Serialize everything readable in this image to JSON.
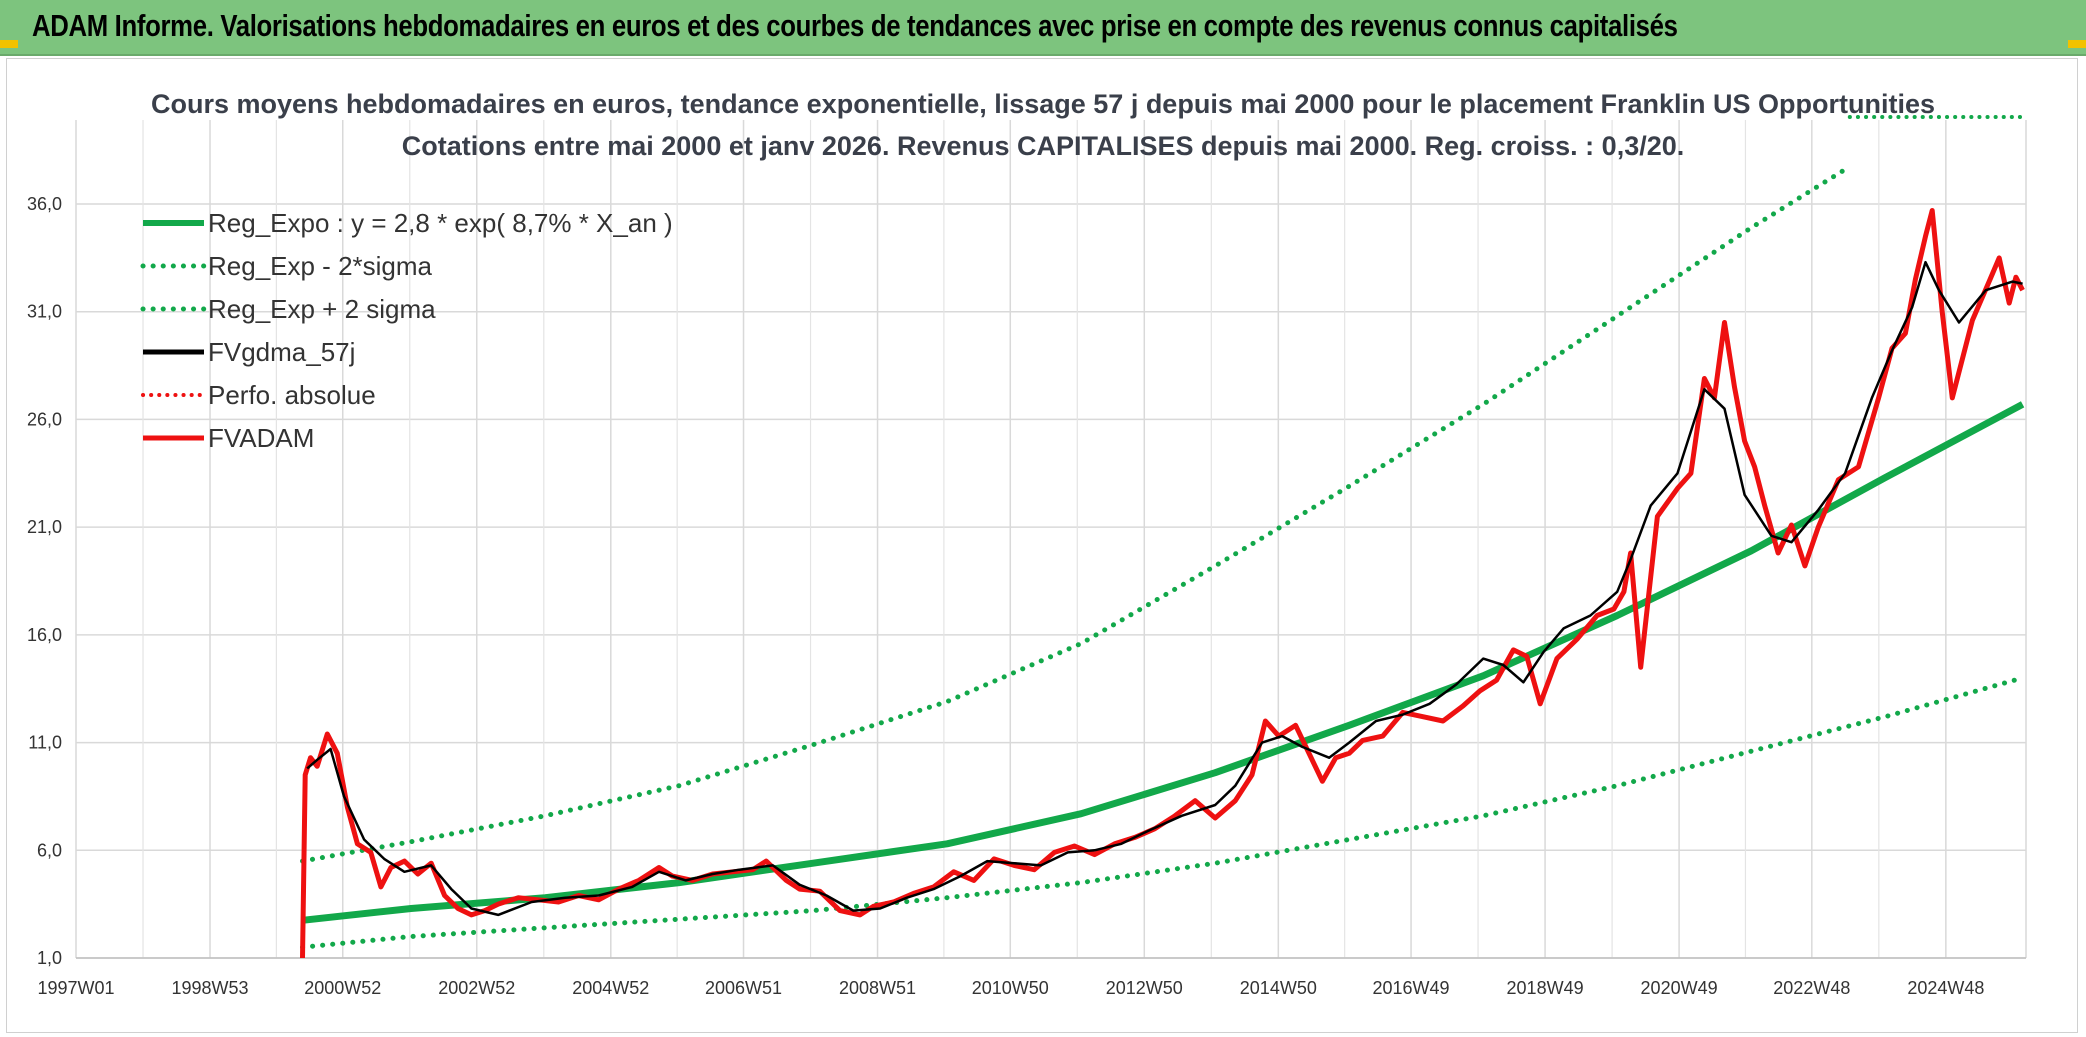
{
  "banner": {
    "title": "ADAM Informe. Valorisations hebdomadaires en euros et des courbes de tendances avec prise en compte des revenus connus capitalisés",
    "background": "#7dc47e"
  },
  "chart_data": {
    "type": "line",
    "title": "Cours moyens hebdomadaires en euros, tendance exponentielle, lissage 57 j depuis mai 2000 pour le placement Franklin US Opportunities",
    "subtitle": "Cotations entre mai 2000 et janv 2026. Revenus CAPITALISES depuis mai 2000. Reg. croiss. : 0,3/20.",
    "x_ticks": [
      "1997W01",
      "1998W53",
      "2000W52",
      "2002W52",
      "2004W52",
      "2006W51",
      "2008W51",
      "2010W50",
      "2012W50",
      "2014W50",
      "2016W49",
      "2018W49",
      "2020W49",
      "2022W48",
      "2024W48"
    ],
    "y_ticks": [
      "1,0",
      "6,0",
      "11,0",
      "16,0",
      "21,0",
      "26,0",
      "31,0",
      "36,0"
    ],
    "ylim": [
      1,
      38
    ],
    "xlim": [
      1997.0,
      2026.1
    ],
    "grid": true,
    "legend_placement": "top-left",
    "colors": {
      "reg": "#12a84a",
      "smooth": "#000000",
      "fund": "#ee1111",
      "perfo": "#ee1111"
    },
    "legend": [
      "Reg_Expo : y = 2,8 * exp( 8,7% *  X_an )",
      "Reg_Exp - 2*sigma",
      "Reg_Exp + 2 sigma",
      "FVgdma_57j",
      "Perfo. absolue",
      "FVADAM"
    ],
    "series": [
      {
        "name": "Reg_Expo : y = 2,8 * exp( 8,7% *  X_an )",
        "style": "solid",
        "x": [
          2000.38,
          2002,
          2004,
          2006,
          2008,
          2010,
          2012,
          2014,
          2016,
          2018,
          2020,
          2022,
          2024,
          2026.05
        ],
        "values": [
          2.75,
          3.3,
          3.8,
          4.5,
          5.4,
          6.3,
          7.7,
          9.6,
          11.8,
          14.1,
          16.9,
          19.9,
          23.3,
          26.7
        ]
      },
      {
        "name": "Reg_Exp - 2*sigma",
        "style": "dotted",
        "x": [
          2000.38,
          2002,
          2004,
          2006,
          2008,
          2010,
          2012,
          2014,
          2016,
          2018,
          2020,
          2022,
          2024,
          2026.05
        ],
        "values": [
          1.5,
          2.0,
          2.4,
          2.8,
          3.2,
          3.8,
          4.5,
          5.4,
          6.5,
          7.6,
          9.0,
          10.6,
          12.2,
          14.0
        ]
      },
      {
        "name": "Reg_Exp + 2 sigma",
        "style": "dotted",
        "x": [
          2000.38,
          2002,
          2004,
          2006,
          2008,
          2010,
          2012,
          2014,
          2016,
          2018,
          2020,
          2022,
          2023.45
        ],
        "values": [
          5.5,
          6.4,
          7.6,
          9.0,
          10.9,
          12.9,
          15.6,
          19.2,
          22.9,
          26.7,
          30.8,
          34.9,
          37.7
        ]
      },
      {
        "name": "FVgdma_57j",
        "style": "solid",
        "x": [
          2000.45,
          2000.6,
          2000.8,
          2001.0,
          2001.3,
          2001.6,
          2001.9,
          2002.3,
          2002.6,
          2002.9,
          2003.3,
          2003.8,
          2004.3,
          2004.8,
          2005.3,
          2005.7,
          2006.1,
          2006.5,
          2006.9,
          2007.4,
          2007.8,
          2008.2,
          2008.6,
          2009.0,
          2009.4,
          2009.8,
          2010.2,
          2010.6,
          2011.0,
          2011.4,
          2011.8,
          2012.2,
          2012.6,
          2013.0,
          2013.5,
          2014.0,
          2014.3,
          2014.7,
          2015.0,
          2015.3,
          2015.7,
          2016.0,
          2016.4,
          2016.8,
          2017.2,
          2017.6,
          2018.0,
          2018.3,
          2018.6,
          2018.9,
          2019.2,
          2019.6,
          2020.0,
          2020.2,
          2020.5,
          2020.9,
          2021.3,
          2021.6,
          2021.9,
          2022.3,
          2022.6,
          2023.0,
          2023.4,
          2023.8,
          2024.1,
          2024.4,
          2024.6,
          2024.8,
          2025.1,
          2025.5,
          2025.9,
          2026.05
        ],
        "values": [
          9.8,
          10.2,
          10.7,
          8.5,
          6.5,
          5.6,
          5.0,
          5.3,
          4.2,
          3.3,
          3.0,
          3.6,
          3.8,
          3.9,
          4.3,
          5.0,
          4.6,
          4.9,
          5.1,
          5.3,
          4.4,
          3.9,
          3.2,
          3.3,
          3.8,
          4.2,
          4.8,
          5.5,
          5.4,
          5.3,
          5.9,
          6.0,
          6.3,
          6.9,
          7.6,
          8.1,
          9.0,
          11.0,
          11.3,
          10.8,
          10.3,
          11.0,
          12.0,
          12.3,
          12.8,
          13.7,
          14.9,
          14.6,
          13.8,
          15.2,
          16.3,
          16.9,
          18.0,
          19.5,
          22.0,
          23.5,
          27.4,
          26.5,
          22.5,
          20.6,
          20.3,
          21.8,
          23.5,
          27.0,
          29.2,
          31.2,
          33.3,
          32.0,
          30.5,
          32.0,
          32.4,
          32.3
        ]
      },
      {
        "name": "Perfo. absolue",
        "style": "dotted",
        "x": [
          2023.47,
          2026.05
        ],
        "values": [
          40.0,
          40.0
        ]
      },
      {
        "name": "FVADAM",
        "style": "solid",
        "x": [
          2000.38,
          2000.42,
          2000.5,
          2000.6,
          2000.75,
          2000.9,
          2001.05,
          2001.2,
          2001.4,
          2001.55,
          2001.7,
          2001.9,
          2002.1,
          2002.3,
          2002.5,
          2002.7,
          2002.9,
          2003.1,
          2003.3,
          2003.6,
          2003.9,
          2004.2,
          2004.5,
          2004.8,
          2005.1,
          2005.4,
          2005.7,
          2005.9,
          2006.2,
          2006.5,
          2006.8,
          2007.1,
          2007.3,
          2007.6,
          2007.8,
          2008.1,
          2008.4,
          2008.7,
          2008.9,
          2009.2,
          2009.5,
          2009.8,
          2010.1,
          2010.4,
          2010.7,
          2011.0,
          2011.3,
          2011.6,
          2011.9,
          2012.2,
          2012.5,
          2012.8,
          2013.1,
          2013.4,
          2013.7,
          2014.0,
          2014.3,
          2014.55,
          2014.75,
          2014.95,
          2015.2,
          2015.4,
          2015.6,
          2015.8,
          2016.0,
          2016.2,
          2016.5,
          2016.8,
          2017.1,
          2017.4,
          2017.7,
          2017.95,
          2018.2,
          2018.45,
          2018.65,
          2018.85,
          2019.1,
          2019.4,
          2019.7,
          2019.95,
          2020.1,
          2020.2,
          2020.35,
          2020.6,
          2020.9,
          2021.1,
          2021.3,
          2021.45,
          2021.6,
          2021.75,
          2021.9,
          2022.05,
          2022.2,
          2022.4,
          2022.6,
          2022.8,
          2023.0,
          2023.3,
          2023.6,
          2023.9,
          2024.1,
          2024.3,
          2024.45,
          2024.6,
          2024.7,
          2024.85,
          2025.0,
          2025.3,
          2025.55,
          2025.7,
          2025.85,
          2025.95,
          2026.05
        ],
        "values": [
          1.0,
          9.5,
          10.3,
          9.9,
          11.4,
          10.5,
          8.0,
          6.3,
          5.9,
          4.3,
          5.2,
          5.5,
          4.9,
          5.4,
          3.9,
          3.3,
          3.0,
          3.2,
          3.5,
          3.8,
          3.7,
          3.6,
          3.9,
          3.7,
          4.2,
          4.6,
          5.2,
          4.8,
          4.6,
          4.9,
          5.0,
          5.1,
          5.5,
          4.6,
          4.2,
          4.1,
          3.2,
          3.0,
          3.4,
          3.6,
          4.0,
          4.3,
          5.0,
          4.6,
          5.6,
          5.3,
          5.1,
          5.9,
          6.2,
          5.8,
          6.3,
          6.6,
          7.0,
          7.6,
          8.3,
          7.5,
          8.3,
          9.5,
          12.0,
          11.3,
          11.8,
          10.5,
          9.2,
          10.3,
          10.5,
          11.1,
          11.3,
          12.4,
          12.2,
          12.0,
          12.7,
          13.4,
          13.9,
          15.3,
          15.0,
          12.8,
          14.9,
          15.8,
          16.9,
          17.2,
          18.0,
          19.8,
          14.5,
          21.5,
          22.8,
          23.5,
          27.9,
          27.0,
          30.5,
          27.5,
          25.0,
          23.8,
          22.0,
          19.8,
          21.1,
          19.2,
          21.0,
          23.2,
          23.8,
          27.0,
          29.3,
          30.0,
          32.5,
          34.5,
          35.7,
          31.0,
          27.0,
          30.6,
          32.4,
          33.5,
          31.4,
          32.6,
          32.0
        ]
      }
    ]
  }
}
